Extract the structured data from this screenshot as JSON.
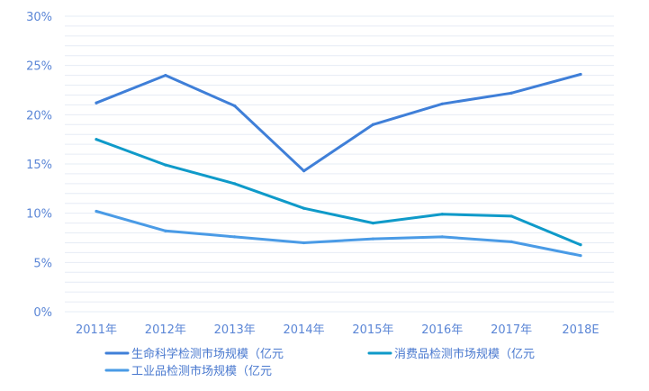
{
  "chart_data": {
    "type": "line",
    "categories": [
      "2011年",
      "2012年",
      "2013年",
      "2014年",
      "2015年",
      "2016年",
      "2017年",
      "2018E"
    ],
    "y_ticks": [
      "0%",
      "5%",
      "10%",
      "15%",
      "20%",
      "25%",
      "30%"
    ],
    "ylim": [
      0,
      30
    ],
    "grid": true,
    "legend_position": "bottom",
    "series": [
      {
        "name": "生命科学检测市场规模（亿元",
        "color": "#3f7fd8",
        "values": [
          21.2,
          24.0,
          20.9,
          14.3,
          19.0,
          21.1,
          22.2,
          24.1
        ]
      },
      {
        "name": "消费品检测市场规模（亿元",
        "color": "#0f9ac9",
        "values": [
          17.5,
          14.9,
          13.0,
          10.5,
          9.0,
          9.9,
          9.7,
          6.8
        ]
      },
      {
        "name": "工业品检测市场规模（亿元",
        "color": "#4a9be6",
        "values": [
          10.2,
          8.2,
          7.6,
          7.0,
          7.4,
          7.6,
          7.1,
          5.7
        ]
      }
    ]
  }
}
